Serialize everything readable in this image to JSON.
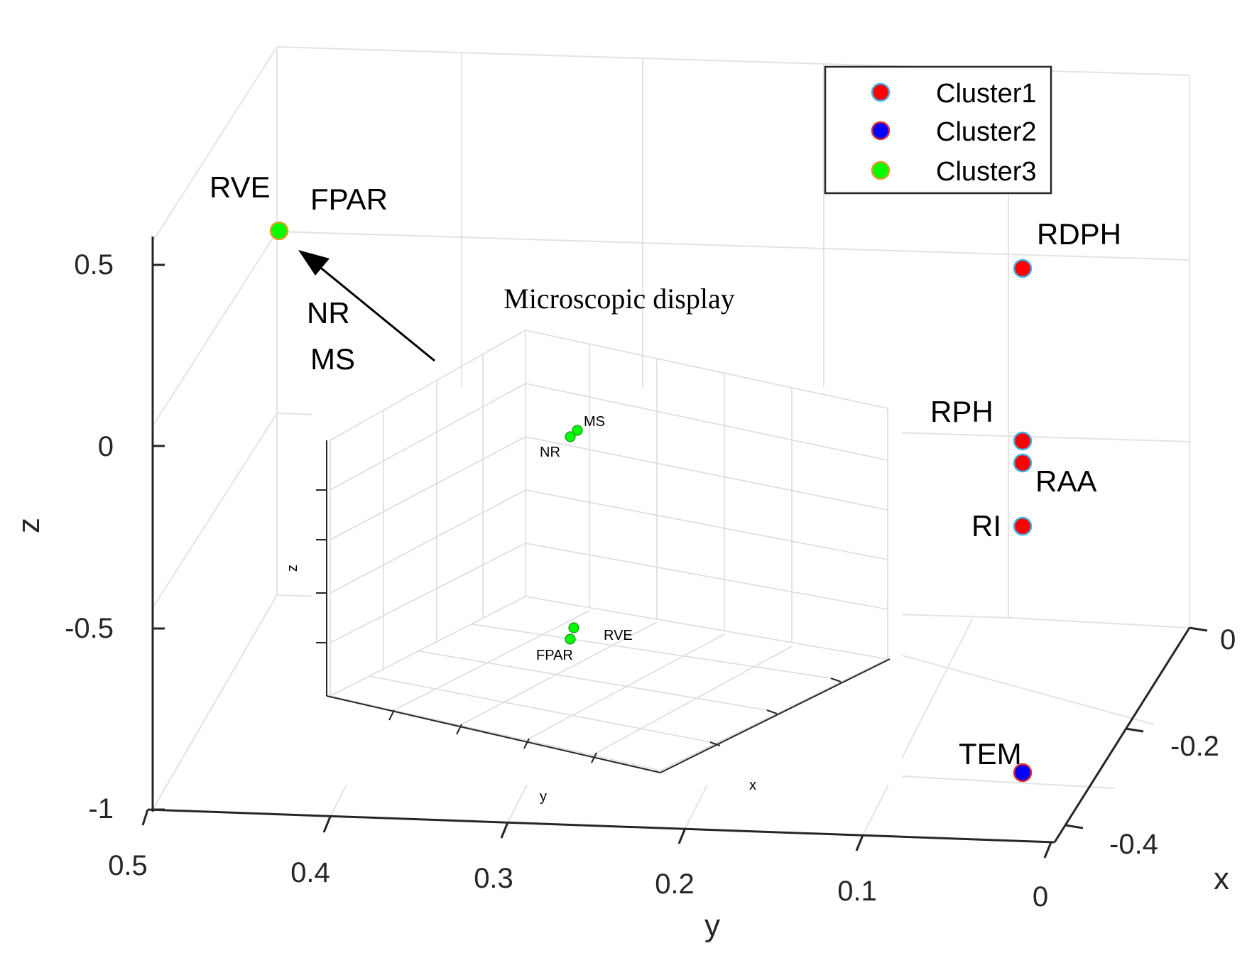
{
  "chart_data": [
    {
      "type": "scatter",
      "title": "",
      "xlabel": "x",
      "ylabel": "y",
      "zlabel": "z",
      "xlim": [
        -0.4,
        0
      ],
      "ylim": [
        0,
        0.5
      ],
      "zlim": [
        -1,
        0.6
      ],
      "x_ticks": [
        "0",
        "-0.2",
        "-0.4"
      ],
      "y_ticks": [
        "0.5",
        "0.4",
        "0.3",
        "0.2",
        "0.1",
        "0"
      ],
      "z_ticks": [
        "0.5",
        "0",
        "-0.5",
        "-1"
      ],
      "legend": {
        "location": "top-right",
        "entries": [
          "Cluster1",
          "Cluster2",
          "Cluster3"
        ]
      },
      "colors": {
        "Cluster1": "#ff0000",
        "Cluster2": "#0000ff",
        "Cluster3": "#00ff00",
        "edge": "#3cb4e6",
        "edge3": "#e0a020"
      },
      "series": [
        {
          "name": "Cluster1",
          "points": [
            {
              "label": "RDPH",
              "x": 0,
              "y": 0,
              "z": 0.49
            },
            {
              "label": "RPH",
              "x": 0,
              "y": 0,
              "z": 0.02
            },
            {
              "label": "RAA",
              "x": 0,
              "y": 0,
              "z": -0.04
            },
            {
              "label": "RI",
              "x": 0,
              "y": 0,
              "z": -0.21
            }
          ]
        },
        {
          "name": "Cluster2",
          "points": [
            {
              "label": "TEM",
              "x": 0,
              "y": 0,
              "z": -0.89
            }
          ]
        },
        {
          "name": "Cluster3",
          "points": [
            {
              "label": "RVE",
              "x": -0.4,
              "y": 0.4,
              "z": 0.58
            },
            {
              "label": "FPAR",
              "x": -0.4,
              "y": 0.4,
              "z": 0.58
            },
            {
              "label": "NR",
              "x": -0.4,
              "y": 0.4,
              "z": 0.58
            },
            {
              "label": "MS",
              "x": -0.4,
              "y": 0.4,
              "z": 0.58
            }
          ]
        }
      ],
      "arrow_labels": [
        "NR",
        "MS"
      ]
    },
    {
      "type": "scatter",
      "title": "Microscopic display",
      "xlabel": "x",
      "ylabel": "y",
      "zlabel": "z",
      "series": [
        {
          "name": "Cluster3",
          "points": [
            {
              "label": "MS",
              "u": 0.44,
              "v": 0.83
            },
            {
              "label": "NR",
              "u": 0.43,
              "v": 0.81
            },
            {
              "label": "RVE",
              "u": 0.44,
              "v": 0.18
            },
            {
              "label": "FPAR",
              "u": 0.43,
              "v": 0.15
            }
          ]
        }
      ]
    }
  ]
}
